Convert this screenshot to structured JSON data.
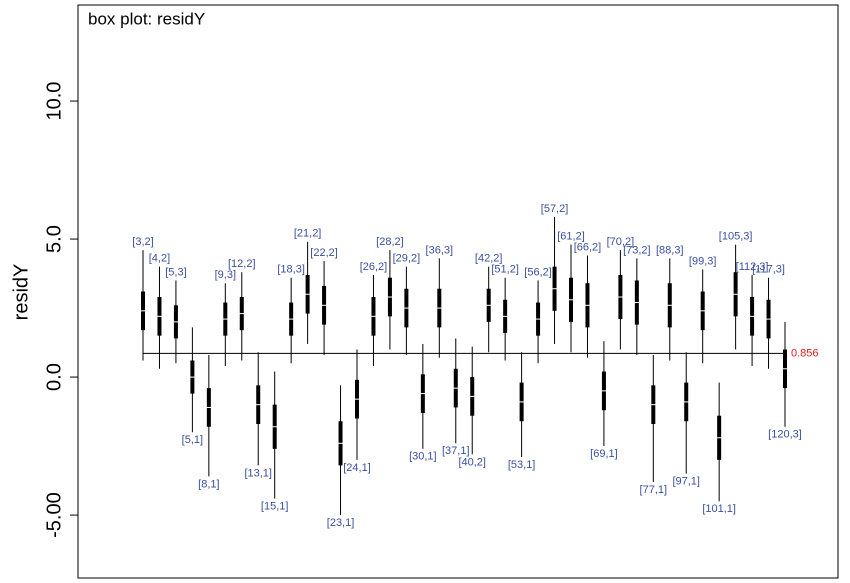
{
  "chart_data": {
    "type": "boxplot",
    "title": "box plot: residY",
    "y_label": "residY",
    "ylim": [
      -7.28,
      13.48
    ],
    "yticks": [
      {
        "value": -5,
        "label": "-5.00"
      },
      {
        "value": 0,
        "label": "0.0"
      },
      {
        "value": 5,
        "label": "5.0"
      },
      {
        "value": 10,
        "label": "10.0"
      }
    ],
    "reference": 0.856,
    "reference_color": "#e8191c",
    "box_color": "#000000",
    "label_color": "#3a4fa0",
    "categories": [
      "[3,2]",
      "[4,2]",
      "[5,3]",
      "[5,1]",
      "[8,1]",
      "[9,3]",
      "[12,2]",
      "[13,1]",
      "[15,1]",
      "[18,3]",
      "[21,2]",
      "[22,2]",
      "[23,1]",
      "[24,1]",
      "[26,2]",
      "[28,2]",
      "[29,2]",
      "[30,1]",
      "[36,3]",
      "[37,1]",
      "[40,2]",
      "[42,2]",
      "[51,2]",
      "[53,1]",
      "[56,2]",
      "[57,2]",
      "[61,2]",
      "[66,2]",
      "[69,1]",
      "[70,2]",
      "[73,2]",
      "[77,1]",
      "[88,3]",
      "[97,1]",
      "[99,3]",
      "[101,1]",
      "[105,3]",
      "[112,3]",
      "[117,3]",
      "[120,3]"
    ],
    "low": [
      0.6,
      0.3,
      0.5,
      -2.0,
      -3.6,
      0.4,
      0.6,
      -3.2,
      -4.4,
      0.5,
      1.2,
      0.8,
      -5.0,
      -3.0,
      0.4,
      1.0,
      0.8,
      -2.6,
      0.7,
      -2.4,
      -2.8,
      0.9,
      0.6,
      -2.9,
      0.5,
      1.2,
      0.9,
      0.7,
      -2.5,
      1.0,
      0.8,
      -3.8,
      0.6,
      -3.5,
      0.5,
      -4.5,
      1.0,
      0.4,
      0.3,
      -1.8
    ],
    "q1": [
      1.7,
      1.5,
      1.4,
      -0.6,
      -1.8,
      1.5,
      1.7,
      -1.7,
      -2.6,
      1.5,
      2.3,
      1.9,
      -3.2,
      -1.5,
      1.5,
      2.2,
      1.8,
      -1.3,
      1.8,
      -1.1,
      -1.4,
      2.0,
      1.6,
      -1.6,
      1.5,
      2.4,
      2.0,
      1.8,
      -1.2,
      2.1,
      1.9,
      -1.7,
      1.8,
      -1.6,
      1.7,
      -3.0,
      2.2,
      1.5,
      1.4,
      -0.4
    ],
    "median": [
      2.4,
      2.2,
      2.0,
      0.0,
      -1.1,
      2.1,
      2.3,
      -1.0,
      -1.8,
      2.1,
      3.0,
      2.6,
      -2.4,
      -0.8,
      2.2,
      2.9,
      2.5,
      -0.6,
      2.5,
      -0.4,
      -0.7,
      2.6,
      2.2,
      -0.9,
      2.1,
      3.2,
      2.8,
      2.6,
      -0.5,
      2.9,
      2.7,
      -1.0,
      2.6,
      -0.9,
      2.4,
      -2.2,
      3.0,
      2.2,
      2.1,
      0.3
    ],
    "q3": [
      3.1,
      2.9,
      2.6,
      0.6,
      -0.4,
      2.7,
      2.9,
      -0.3,
      -1.0,
      2.7,
      3.7,
      3.3,
      -1.6,
      -0.1,
      2.9,
      3.6,
      3.2,
      0.1,
      3.2,
      0.3,
      0.0,
      3.2,
      2.8,
      -0.2,
      2.7,
      4.0,
      3.6,
      3.4,
      0.2,
      3.7,
      3.5,
      -0.3,
      3.4,
      -0.2,
      3.1,
      -1.4,
      3.8,
      2.9,
      2.8,
      1.0
    ],
    "high": [
      4.6,
      4.0,
      3.5,
      1.8,
      0.8,
      3.4,
      3.8,
      0.9,
      0.2,
      3.6,
      4.9,
      4.2,
      -0.3,
      1.0,
      3.7,
      4.6,
      4.0,
      1.2,
      4.3,
      1.4,
      1.1,
      4.0,
      3.6,
      0.9,
      3.5,
      5.8,
      4.8,
      4.4,
      1.3,
      4.6,
      4.3,
      0.8,
      4.3,
      0.9,
      3.9,
      -0.2,
      4.8,
      3.7,
      3.6,
      2.0
    ]
  }
}
